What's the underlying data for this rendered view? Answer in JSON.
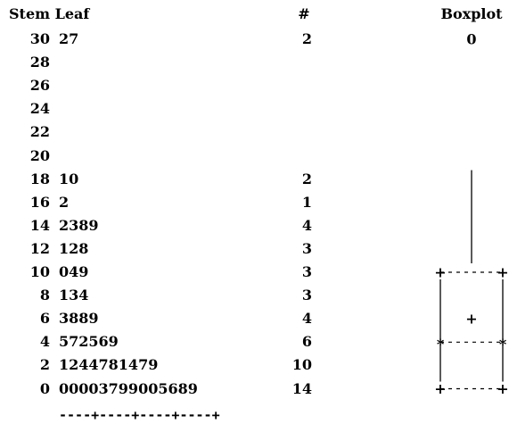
{
  "headers": {
    "stem_leaf": "Stem Leaf",
    "count": "#",
    "boxplot": "Boxplot"
  },
  "axis": "----+----+----+----+",
  "chart_data": {
    "type": "stem-and-leaf with boxplot",
    "rows": [
      {
        "stem": "30",
        "leaf": "27",
        "count": "2"
      },
      {
        "stem": "28",
        "leaf": "",
        "count": ""
      },
      {
        "stem": "26",
        "leaf": "",
        "count": ""
      },
      {
        "stem": "24",
        "leaf": "",
        "count": ""
      },
      {
        "stem": "22",
        "leaf": "",
        "count": ""
      },
      {
        "stem": "20",
        "leaf": "",
        "count": ""
      },
      {
        "stem": "18",
        "leaf": "10",
        "count": "2"
      },
      {
        "stem": "16",
        "leaf": "2",
        "count": "1"
      },
      {
        "stem": "14",
        "leaf": "2389",
        "count": "4"
      },
      {
        "stem": "12",
        "leaf": "128",
        "count": "3"
      },
      {
        "stem": "10",
        "leaf": "049",
        "count": "3"
      },
      {
        "stem": "8",
        "leaf": "134",
        "count": "3"
      },
      {
        "stem": "6",
        "leaf": "3889",
        "count": "4"
      },
      {
        "stem": "4",
        "leaf": "572569",
        "count": "6"
      },
      {
        "stem": "2",
        "leaf": "1244781479",
        "count": "10"
      },
      {
        "stem": "0",
        "leaf": "00003799005689",
        "count": "14"
      }
    ],
    "boxplot": {
      "outlier_marker": "0",
      "outlier_stem": "30",
      "whisker_top_stem": "18",
      "q3_stem": "10",
      "mean_stem": "6",
      "mean_marker": "+",
      "median_stem": "4",
      "median_marker": "*",
      "q1_stem": "0",
      "whisker_bottom_stem": "0"
    }
  }
}
